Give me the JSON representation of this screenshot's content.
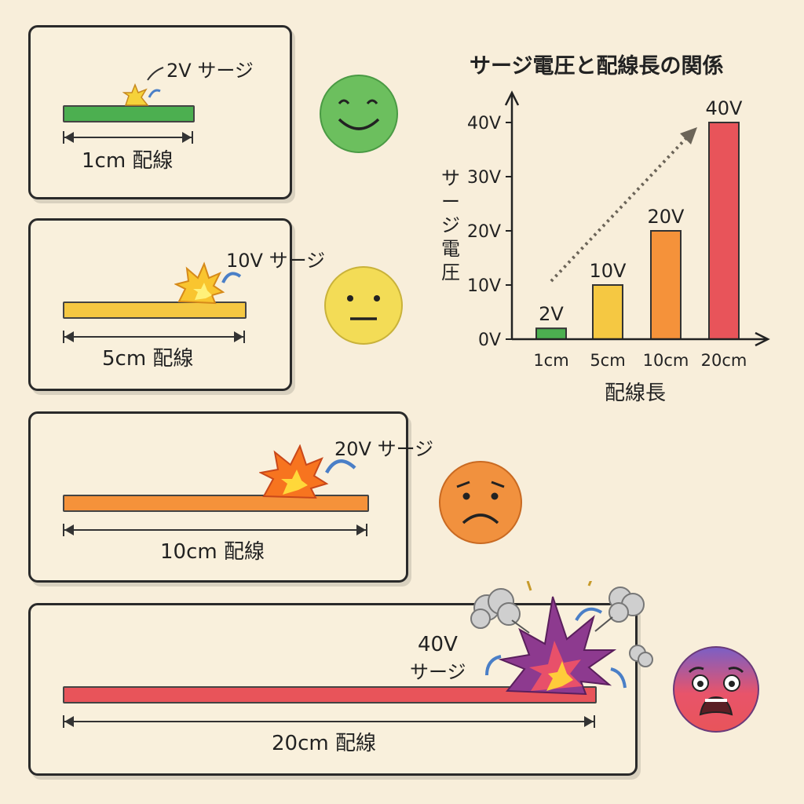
{
  "rows": [
    {
      "wire_label": "1cm 配線",
      "surge_label": "2V サージ",
      "color": "#4caf50",
      "face": "happy"
    },
    {
      "wire_label": "5cm 配線",
      "surge_label": "10V サージ",
      "color": "#f5c842",
      "face": "neutral"
    },
    {
      "wire_label": "10cm 配線",
      "surge_label": "20V サージ",
      "color": "#f5923a",
      "face": "sad"
    },
    {
      "wire_label": "20cm 配線",
      "surge_label_line1": "40V",
      "surge_label_line2": "サージ",
      "color": "#e8545a",
      "face": "scared"
    }
  ],
  "chart_data": {
    "type": "bar",
    "title": "サージ電圧と配線長の関係",
    "xlabel": "配線長",
    "ylabel": "サージ電圧",
    "categories": [
      "1cm",
      "5cm",
      "10cm",
      "20cm"
    ],
    "values": [
      2,
      10,
      20,
      40
    ],
    "value_labels": [
      "2V",
      "10V",
      "20V",
      "40V"
    ],
    "yticks": [
      "0V",
      "10V",
      "20V",
      "30V",
      "40V"
    ],
    "ylim": [
      0,
      40
    ],
    "colors": [
      "#4caf50",
      "#f5c842",
      "#f5923a",
      "#e8545a"
    ]
  }
}
